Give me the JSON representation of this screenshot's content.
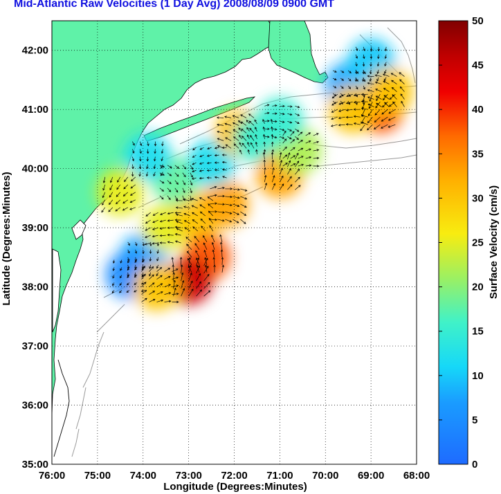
{
  "title": "Mid-Atlantic Raw Velocities (1 Day Avg) 2008/08/09 0900 GMT",
  "axes": {
    "xlabel": "Longitude (Degrees:Minutes)",
    "ylabel": "Latitude (Degrees:Minutes)",
    "x_ticks": [
      "76:00",
      "75:00",
      "74:00",
      "73:00",
      "72:00",
      "71:00",
      "70:00",
      "69:00",
      "68:00"
    ],
    "y_ticks": [
      "42:00",
      "41:00",
      "40:00",
      "39:00",
      "38:00",
      "37:00",
      "36:00",
      "35:00"
    ],
    "xlim": [
      -76,
      -68
    ],
    "ylim": [
      35,
      42.5
    ],
    "grid": "dotted"
  },
  "colorbar": {
    "label": "Surface Velocity (cm/s)",
    "ticks": [
      "50",
      "45",
      "40",
      "35",
      "30",
      "25",
      "20",
      "15",
      "10",
      "5",
      "0"
    ],
    "range": [
      0,
      50
    ],
    "colormap": "jet"
  },
  "colors": {
    "title": "#1010e0",
    "land": "#5ff2a8",
    "coast": "#000000",
    "bathymetry": "#999999"
  },
  "chart_data": {
    "type": "heatmap",
    "title": "Mid-Atlantic Raw Velocities (1 Day Avg) 2008/08/09 0900 GMT",
    "xlabel": "Longitude (Degrees:Minutes)",
    "ylabel": "Latitude (Degrees:Minutes)",
    "xlim": [
      -76,
      -68
    ],
    "ylim": [
      35,
      42.5
    ],
    "colorbar_label": "Surface Velocity (cm/s)",
    "value_range": [
      0,
      50
    ],
    "regions": [
      {
        "lon": -74.0,
        "lat": 38.5,
        "speed": 8
      },
      {
        "lon": -74.3,
        "lat": 38.2,
        "speed": 5
      },
      {
        "lon": -73.5,
        "lat": 39.0,
        "speed": 25
      },
      {
        "lon": -72.8,
        "lat": 39.2,
        "speed": 30
      },
      {
        "lon": -72.6,
        "lat": 38.5,
        "speed": 38
      },
      {
        "lon": -73.0,
        "lat": 38.1,
        "speed": 45
      },
      {
        "lon": -73.7,
        "lat": 38.0,
        "speed": 30
      },
      {
        "lon": -72.2,
        "lat": 39.4,
        "speed": 33
      },
      {
        "lon": -73.3,
        "lat": 39.8,
        "speed": 18
      },
      {
        "lon": -73.9,
        "lat": 40.2,
        "speed": 12
      },
      {
        "lon": -74.5,
        "lat": 39.6,
        "speed": 25
      },
      {
        "lon": -72.5,
        "lat": 40.1,
        "speed": 12
      },
      {
        "lon": -71.9,
        "lat": 40.6,
        "speed": 30
      },
      {
        "lon": -71.5,
        "lat": 40.5,
        "speed": 15
      },
      {
        "lon": -71.0,
        "lat": 39.9,
        "speed": 33
      },
      {
        "lon": -70.6,
        "lat": 40.3,
        "speed": 22
      },
      {
        "lon": -71.0,
        "lat": 40.8,
        "speed": 15
      },
      {
        "lon": -69.5,
        "lat": 41.4,
        "speed": 8
      },
      {
        "lon": -69.0,
        "lat": 41.8,
        "speed": 10
      },
      {
        "lon": -68.8,
        "lat": 41.0,
        "speed": 38
      },
      {
        "lon": -69.4,
        "lat": 41.0,
        "speed": 30
      },
      {
        "lon": -68.6,
        "lat": 41.3,
        "speed": 30
      }
    ]
  }
}
